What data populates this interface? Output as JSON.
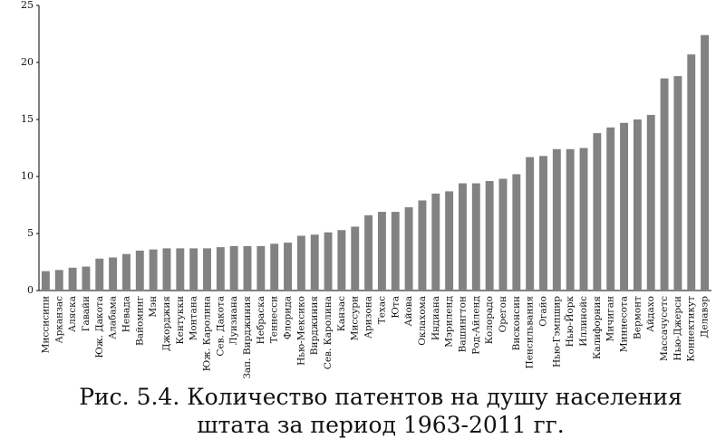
{
  "chart_data": {
    "type": "bar",
    "title": [
      "Рис. 5.4. Количество патентов на душу населения",
      "штата за период 1963-2011 гг."
    ],
    "categories": [
      "Миссисипи",
      "Арканзас",
      "Аляска",
      "Гавайи",
      "Юж. Дакота",
      "Алабама",
      "Невада",
      "Вайоминг",
      "Мэн",
      "Джорджия",
      "Кентукки",
      "Монтана",
      "Юж. Каролина",
      "Сев. Дакота",
      "Луизиана",
      "Зап. Вирджиния",
      "Небраска",
      "Теннесси",
      "Флорида",
      "Нью-Мексико",
      "Вирджиния",
      "Сев. Каролина",
      "Канзас",
      "Миссури",
      "Аризона",
      "Техас",
      "Юта",
      "Айова",
      "Оклахома",
      "Индиана",
      "Мэриленд",
      "Вашингтон",
      "Род-Айленд",
      "Колорадо",
      "Орегон",
      "Висконсин",
      "Пенсильвания",
      "Огайо",
      "Нью-Гэмпшир",
      "Нью-Йорк",
      "Иллинойс",
      "Калифорния",
      "Мичиган",
      "Миннесота",
      "Вермонт",
      "Айдахо",
      "Массачусетс",
      "Нью-Джерси",
      "Коннектикут",
      "Делавэр"
    ],
    "values": [
      1.7,
      1.8,
      2.0,
      2.1,
      2.8,
      2.9,
      3.2,
      3.5,
      3.6,
      3.7,
      3.7,
      3.7,
      3.7,
      3.8,
      3.9,
      3.9,
      3.9,
      4.1,
      4.2,
      4.8,
      4.9,
      5.1,
      5.3,
      5.6,
      6.6,
      6.9,
      6.9,
      7.3,
      7.9,
      8.5,
      8.7,
      9.4,
      9.4,
      9.6,
      9.8,
      10.2,
      11.7,
      11.8,
      12.4,
      12.4,
      12.5,
      13.8,
      14.3,
      14.7,
      15.0,
      15.4,
      18.6,
      18.8,
      20.7,
      22.4
    ],
    "color": "#828282",
    "ylim": [
      0,
      25
    ],
    "yticks": [
      0,
      5,
      10,
      15,
      20,
      25
    ],
    "grid": false
  }
}
